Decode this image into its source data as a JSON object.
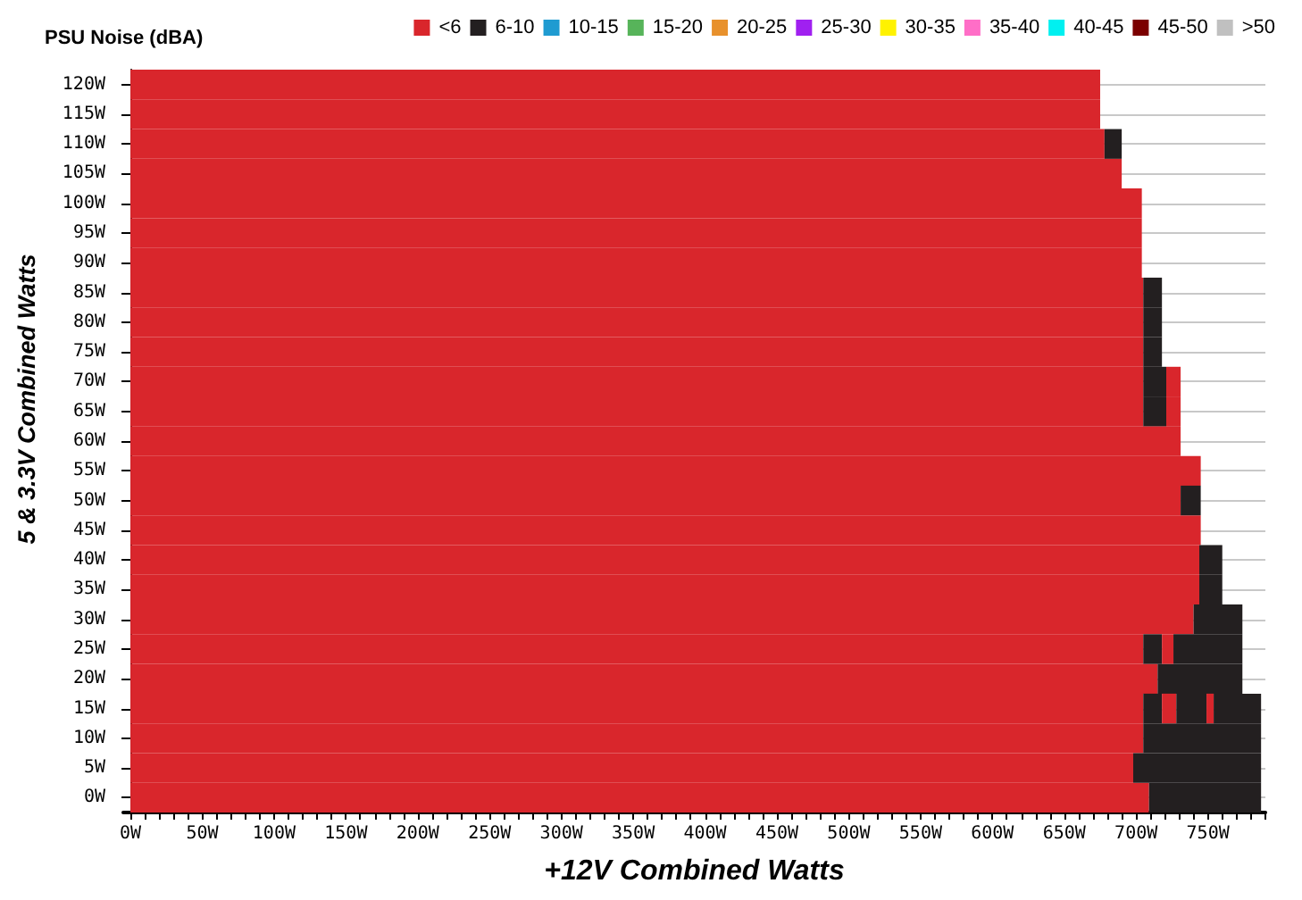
{
  "chart_data": {
    "type": "bar",
    "orientation": "horizontal",
    "stacked": true,
    "title": "PSU Noise (dBA)",
    "xlabel": "+12V Combined Watts",
    "ylabel": "5 & 3.3V Combined Watts",
    "categories": [
      "120W",
      "115W",
      "110W",
      "105W",
      "100W",
      "95W",
      "90W",
      "85W",
      "80W",
      "75W",
      "70W",
      "65W",
      "60W",
      "55W",
      "50W",
      "45W",
      "40W",
      "35W",
      "30W",
      "25W",
      "20W",
      "15W",
      "10W",
      "5W",
      "0W"
    ],
    "xlim": [
      -5,
      790
    ],
    "xticks": [
      {
        "value": 0,
        "label": "0W"
      },
      {
        "value": 10,
        "label": null
      },
      {
        "value": 20,
        "label": null
      },
      {
        "value": 30,
        "label": null
      },
      {
        "value": 40,
        "label": null
      },
      {
        "value": 50,
        "label": "50W"
      },
      {
        "value": 60,
        "label": null
      },
      {
        "value": 70,
        "label": null
      },
      {
        "value": 80,
        "label": null
      },
      {
        "value": 90,
        "label": null
      },
      {
        "value": 100,
        "label": "100W"
      },
      {
        "value": 110,
        "label": null
      },
      {
        "value": 120,
        "label": null
      },
      {
        "value": 130,
        "label": null
      },
      {
        "value": 140,
        "label": null
      },
      {
        "value": 150,
        "label": "150W"
      },
      {
        "value": 160,
        "label": null
      },
      {
        "value": 170,
        "label": null
      },
      {
        "value": 180,
        "label": null
      },
      {
        "value": 190,
        "label": null
      },
      {
        "value": 200,
        "label": "200W"
      },
      {
        "value": 210,
        "label": null
      },
      {
        "value": 220,
        "label": null
      },
      {
        "value": 230,
        "label": null
      },
      {
        "value": 240,
        "label": null
      },
      {
        "value": 250,
        "label": "250W"
      },
      {
        "value": 260,
        "label": null
      },
      {
        "value": 270,
        "label": null
      },
      {
        "value": 280,
        "label": null
      },
      {
        "value": 290,
        "label": null
      },
      {
        "value": 300,
        "label": "300W"
      },
      {
        "value": 310,
        "label": null
      },
      {
        "value": 320,
        "label": null
      },
      {
        "value": 330,
        "label": null
      },
      {
        "value": 340,
        "label": null
      },
      {
        "value": 350,
        "label": "350W"
      },
      {
        "value": 360,
        "label": null
      },
      {
        "value": 370,
        "label": null
      },
      {
        "value": 380,
        "label": null
      },
      {
        "value": 390,
        "label": null
      },
      {
        "value": 400,
        "label": "400W"
      },
      {
        "value": 410,
        "label": null
      },
      {
        "value": 420,
        "label": null
      },
      {
        "value": 430,
        "label": null
      },
      {
        "value": 440,
        "label": null
      },
      {
        "value": 450,
        "label": "450W"
      },
      {
        "value": 460,
        "label": null
      },
      {
        "value": 470,
        "label": null
      },
      {
        "value": 480,
        "label": null
      },
      {
        "value": 490,
        "label": null
      },
      {
        "value": 500,
        "label": "500W"
      },
      {
        "value": 510,
        "label": null
      },
      {
        "value": 520,
        "label": null
      },
      {
        "value": 530,
        "label": null
      },
      {
        "value": 540,
        "label": null
      },
      {
        "value": 550,
        "label": "550W"
      },
      {
        "value": 560,
        "label": null
      },
      {
        "value": 570,
        "label": null
      },
      {
        "value": 580,
        "label": null
      },
      {
        "value": 590,
        "label": null
      },
      {
        "value": 600,
        "label": "600W"
      },
      {
        "value": 610,
        "label": null
      },
      {
        "value": 620,
        "label": null
      },
      {
        "value": 630,
        "label": null
      },
      {
        "value": 640,
        "label": null
      },
      {
        "value": 650,
        "label": "650W"
      },
      {
        "value": 660,
        "label": null
      },
      {
        "value": 670,
        "label": null
      },
      {
        "value": 680,
        "label": null
      },
      {
        "value": 690,
        "label": null
      },
      {
        "value": 700,
        "label": "700W"
      },
      {
        "value": 710,
        "label": null
      },
      {
        "value": 720,
        "label": null
      },
      {
        "value": 730,
        "label": null
      },
      {
        "value": 740,
        "label": null
      },
      {
        "value": 750,
        "label": "750W"
      },
      {
        "value": 760,
        "label": null
      },
      {
        "value": 770,
        "label": null
      },
      {
        "value": 780,
        "label": null
      },
      {
        "value": 790,
        "label": null
      }
    ],
    "grid": "y",
    "legend": "top right",
    "series": [
      {
        "name": "<6",
        "color": "#d9262c",
        "values": [
          675,
          675,
          678,
          690,
          704,
          704,
          704,
          705,
          705,
          705,
          705,
          705,
          731,
          745,
          731,
          745,
          744,
          744,
          740,
          705,
          715,
          705,
          705,
          698,
          709
        ]
      },
      {
        "name": "6-10",
        "color": "#231f20",
        "values": [
          null,
          null,
          12,
          null,
          null,
          null,
          null,
          13,
          13,
          13,
          16,
          16,
          null,
          null,
          14,
          null,
          16,
          16,
          34,
          13,
          59,
          13,
          82,
          89,
          78
        ]
      },
      {
        "name": "10-15",
        "color": "#1f9bd1",
        "values": [
          null,
          null,
          null,
          null,
          null,
          null,
          null,
          null,
          null,
          null,
          null,
          null,
          null,
          null,
          null,
          null,
          null,
          null,
          null,
          null,
          null,
          null,
          null,
          null,
          null
        ]
      },
      {
        "name": "15-20",
        "color": "#57b45a",
        "values": [
          null,
          null,
          null,
          null,
          null,
          null,
          null,
          null,
          null,
          null,
          null,
          null,
          null,
          null,
          null,
          null,
          null,
          null,
          null,
          null,
          null,
          null,
          null,
          null,
          null
        ]
      },
      {
        "name": "20-25",
        "color": "#e8912c",
        "values": [
          null,
          null,
          null,
          null,
          null,
          null,
          null,
          null,
          null,
          null,
          null,
          null,
          null,
          null,
          null,
          null,
          null,
          null,
          null,
          null,
          null,
          null,
          null,
          null,
          null
        ]
      },
      {
        "name": "25-30",
        "color": "#a020f0",
        "values": [
          null,
          null,
          null,
          null,
          null,
          null,
          null,
          null,
          null,
          null,
          null,
          null,
          null,
          null,
          null,
          null,
          null,
          null,
          null,
          null,
          null,
          null,
          null,
          null,
          null
        ]
      },
      {
        "name": "30-35",
        "color": "#fff200",
        "values": [
          null,
          null,
          null,
          null,
          null,
          null,
          null,
          null,
          null,
          null,
          null,
          null,
          null,
          null,
          null,
          null,
          null,
          null,
          null,
          null,
          null,
          null,
          null,
          null,
          null
        ]
      },
      {
        "name": "35-40",
        "color": "#ff6ec7",
        "values": [
          null,
          null,
          null,
          null,
          null,
          null,
          null,
          null,
          null,
          null,
          null,
          null,
          null,
          null,
          null,
          null,
          null,
          null,
          null,
          null,
          null,
          null,
          null,
          null,
          null
        ]
      },
      {
        "name": "40-45",
        "color": "#00f0f0",
        "values": [
          null,
          null,
          null,
          null,
          null,
          null,
          null,
          null,
          null,
          null,
          null,
          null,
          null,
          null,
          null,
          null,
          null,
          null,
          null,
          null,
          null,
          null,
          null,
          null,
          null
        ]
      },
      {
        "name": "45-50",
        "color": "#7b0000",
        "values": [
          null,
          null,
          null,
          null,
          null,
          null,
          null,
          null,
          null,
          null,
          null,
          null,
          null,
          null,
          null,
          null,
          null,
          null,
          null,
          null,
          null,
          null,
          null,
          null,
          null
        ]
      },
      {
        "name": ">50",
        "color": "#c0c0c0",
        "values": [
          null,
          null,
          null,
          null,
          null,
          null,
          null,
          null,
          null,
          null,
          null,
          null,
          null,
          null,
          null,
          null,
          null,
          null,
          null,
          null,
          null,
          null,
          null,
          null,
          null
        ]
      },
      {
        "color": "#d9262c",
        "values": [
          null,
          null,
          null,
          null,
          null,
          null,
          null,
          null,
          null,
          null,
          10,
          10,
          null,
          null,
          null,
          null,
          null,
          null,
          null,
          8,
          null,
          10,
          null,
          null,
          null
        ]
      },
      {
        "color": "#231f20",
        "values": [
          null,
          null,
          null,
          null,
          null,
          null,
          null,
          null,
          null,
          null,
          null,
          null,
          null,
          null,
          null,
          null,
          null,
          null,
          null,
          48,
          null,
          21,
          null,
          null,
          null
        ]
      },
      {
        "color": "#d9262c",
        "values": [
          null,
          null,
          null,
          null,
          null,
          null,
          null,
          null,
          null,
          null,
          null,
          null,
          null,
          null,
          null,
          null,
          null,
          null,
          null,
          null,
          null,
          5,
          null,
          null,
          null
        ]
      },
      {
        "color": "#231f20",
        "values": [
          null,
          null,
          null,
          null,
          null,
          null,
          null,
          null,
          null,
          null,
          null,
          null,
          null,
          null,
          null,
          null,
          null,
          null,
          null,
          null,
          null,
          33,
          null,
          null,
          null
        ]
      }
    ]
  }
}
